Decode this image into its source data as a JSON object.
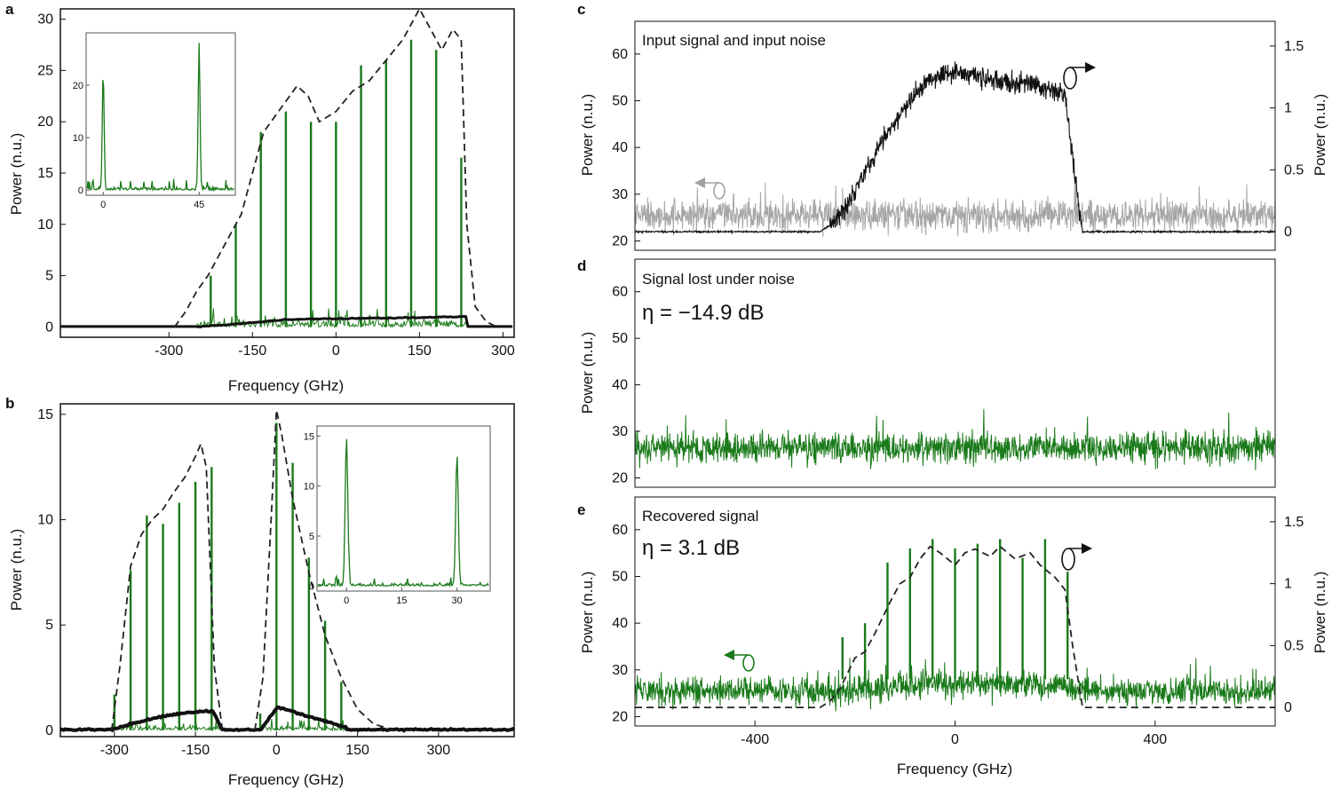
{
  "colors": {
    "green": "#1a7a1a",
    "black": "#111111",
    "gray": "#a6a6a6",
    "dashed": "#222222"
  },
  "chart_data": [
    {
      "panel": "a",
      "type": "line",
      "xlabel": "Frequency (GHz)",
      "ylabel": "Power (n.u.)",
      "xlim": [
        -495,
        320
      ],
      "ylim": [
        -1,
        31
      ],
      "xticks": [
        -300,
        -150,
        0,
        150,
        300
      ],
      "xtick_labels": [
        "-300",
        "-150",
        "0",
        "150",
        "300"
      ],
      "yticks": [
        0,
        5,
        10,
        15,
        20,
        25,
        30
      ],
      "comb_lines": {
        "x": [
          -225,
          -180,
          -135,
          -90,
          -45,
          0,
          45,
          90,
          135,
          180,
          225
        ],
        "y": [
          5,
          10,
          19,
          21,
          20,
          20,
          25.5,
          26,
          28,
          27,
          16.5
        ]
      },
      "envelope": {
        "x": [
          -290,
          -270,
          -250,
          -230,
          -210,
          -190,
          -170,
          -150,
          -130,
          -110,
          -90,
          -70,
          -50,
          -30,
          0,
          30,
          60,
          90,
          120,
          140,
          150,
          170,
          190,
          210,
          225,
          235,
          250,
          270,
          290
        ],
        "y": [
          0,
          1.5,
          3.5,
          5,
          7,
          9,
          11,
          15,
          19,
          20.5,
          22,
          23.5,
          22.5,
          20,
          21,
          23,
          24,
          26,
          28,
          30,
          31,
          29,
          27,
          29,
          28,
          10,
          2,
          0.5,
          0
        ]
      },
      "noise_floor": {
        "x_start": -250,
        "x_end": 235,
        "level": 1.0
      },
      "inset": {
        "xticks": [
          0,
          45
        ],
        "yticks": [
          0,
          10,
          20
        ],
        "peaks_x": [
          0,
          45
        ],
        "peaks_y": [
          22,
          28
        ],
        "xlim": [
          -8,
          62
        ],
        "ylim": [
          -1,
          30
        ]
      }
    },
    {
      "panel": "b",
      "type": "line",
      "xlabel": "Frequency (GHz)",
      "ylabel": "Power (n.u.)",
      "xlim": [
        -400,
        440
      ],
      "ylim": [
        -0.3,
        15.5
      ],
      "xticks": [
        -300,
        -150,
        0,
        150,
        300
      ],
      "xtick_labels": [
        "-300",
        "-150",
        "0",
        "150",
        "300"
      ],
      "yticks": [
        0,
        5,
        10,
        15
      ],
      "comb_lines": {
        "x": [
          -300,
          -270,
          -240,
          -210,
          -180,
          -150,
          -120,
          -30,
          0,
          30,
          60,
          90,
          120
        ],
        "y": [
          1.7,
          7.6,
          10.2,
          9.8,
          10.8,
          11.8,
          12.5,
          0.8,
          14.6,
          12.7,
          8.2,
          5.2,
          2.3
        ]
      },
      "envelope_left": {
        "x": [
          -305,
          -290,
          -270,
          -250,
          -230,
          -210,
          -190,
          -170,
          -150,
          -140,
          -130,
          -115,
          -100
        ],
        "y": [
          0,
          3,
          7.8,
          9.3,
          10,
          10.5,
          11.3,
          12,
          13,
          13.6,
          12.5,
          3,
          0
        ]
      },
      "envelope_right": {
        "x": [
          -40,
          -25,
          -10,
          0,
          10,
          30,
          60,
          90,
          120,
          150,
          180,
          220
        ],
        "y": [
          0,
          2.5,
          10,
          15.2,
          14,
          11,
          7.5,
          4.5,
          2.5,
          1,
          0.3,
          0
        ]
      },
      "noise_floor": [
        {
          "x_start": -310,
          "x_end": -100,
          "level": 0.9
        },
        {
          "x_start": -30,
          "x_end": 130,
          "level": 0.9
        }
      ],
      "inset": {
        "xticks": [
          0,
          15,
          30
        ],
        "yticks": [
          0,
          5,
          10,
          15
        ],
        "peaks_x": [
          0,
          30
        ],
        "peaks_y": [
          14.8,
          13
        ],
        "xlim": [
          -8,
          39
        ],
        "ylim": [
          -0.5,
          16
        ]
      }
    },
    {
      "panel": "c",
      "type": "line",
      "annotation": "Input signal and input noise",
      "ylabel": "Power (n.u.)",
      "ylabel_right": "Power (n.u.)",
      "xlim": [
        -640,
        640
      ],
      "ylim": [
        18,
        67
      ],
      "ylim_right": [
        -0.15,
        1.7
      ],
      "yticks": [
        20,
        30,
        40,
        50,
        60
      ],
      "yticks_right": [
        0,
        0.5,
        1,
        1.5
      ],
      "yticks_right_labels": [
        "0",
        "0.5",
        "1",
        "1.5"
      ],
      "noise": {
        "mean": 25.5,
        "amplitude": 3.5
      },
      "signal": {
        "x": [
          -640,
          -270,
          -250,
          -220,
          -200,
          -150,
          -100,
          -50,
          0,
          50,
          100,
          150,
          220,
          235,
          255,
          640
        ],
        "y": [
          0,
          0,
          0.05,
          0.2,
          0.35,
          0.7,
          1.0,
          1.25,
          1.3,
          1.25,
          1.2,
          1.2,
          1.1,
          0.6,
          0,
          0
        ]
      }
    },
    {
      "panel": "d",
      "type": "line",
      "annotation": "Signal lost under noise",
      "eta_text": "η = −14.9 dB",
      "ylabel": "Power (n.u.)",
      "xlim": [
        -640,
        640
      ],
      "ylim": [
        18,
        67
      ],
      "yticks": [
        20,
        30,
        40,
        50,
        60
      ],
      "noise": {
        "mean": 26.5,
        "amplitude": 3.5
      }
    },
    {
      "panel": "e",
      "type": "line",
      "annotation": "Recovered signal",
      "eta_text": "η = 3.1 dB",
      "xlabel": "Frequency (GHz)",
      "ylabel": "Power (n.u.)",
      "ylabel_right": "Power (n.u.)",
      "xlim": [
        -640,
        640
      ],
      "ylim": [
        18,
        67
      ],
      "ylim_right": [
        -0.15,
        1.7
      ],
      "xticks": [
        -400,
        0,
        400
      ],
      "xtick_labels": [
        "-400",
        "0",
        "400"
      ],
      "yticks": [
        20,
        30,
        40,
        50,
        60
      ],
      "yticks_right": [
        0,
        0.5,
        1,
        1.5
      ],
      "yticks_right_labels": [
        "0",
        "0.5",
        "1",
        "1.5"
      ],
      "noise": {
        "mean": 25.5,
        "amplitude": 3.2
      },
      "comb_lines": {
        "x": [
          -225,
          -180,
          -135,
          -90,
          -45,
          0,
          45,
          90,
          135,
          180,
          225
        ],
        "y": [
          37,
          40,
          53,
          56,
          58,
          56,
          57,
          58,
          54,
          58,
          51
        ]
      },
      "envelope": {
        "x": [
          -640,
          -270,
          -250,
          -230,
          -200,
          -180,
          -160,
          -130,
          -110,
          -90,
          -70,
          -50,
          -30,
          0,
          20,
          40,
          70,
          90,
          120,
          150,
          170,
          200,
          220,
          235,
          255,
          640
        ],
        "y": [
          0,
          0,
          0.05,
          0.15,
          0.4,
          0.45,
          0.6,
          0.85,
          1.0,
          1.05,
          1.2,
          1.3,
          1.25,
          1.15,
          1.25,
          1.28,
          1.22,
          1.3,
          1.2,
          1.25,
          1.15,
          1.05,
          0.95,
          0.5,
          0,
          0
        ]
      }
    }
  ]
}
